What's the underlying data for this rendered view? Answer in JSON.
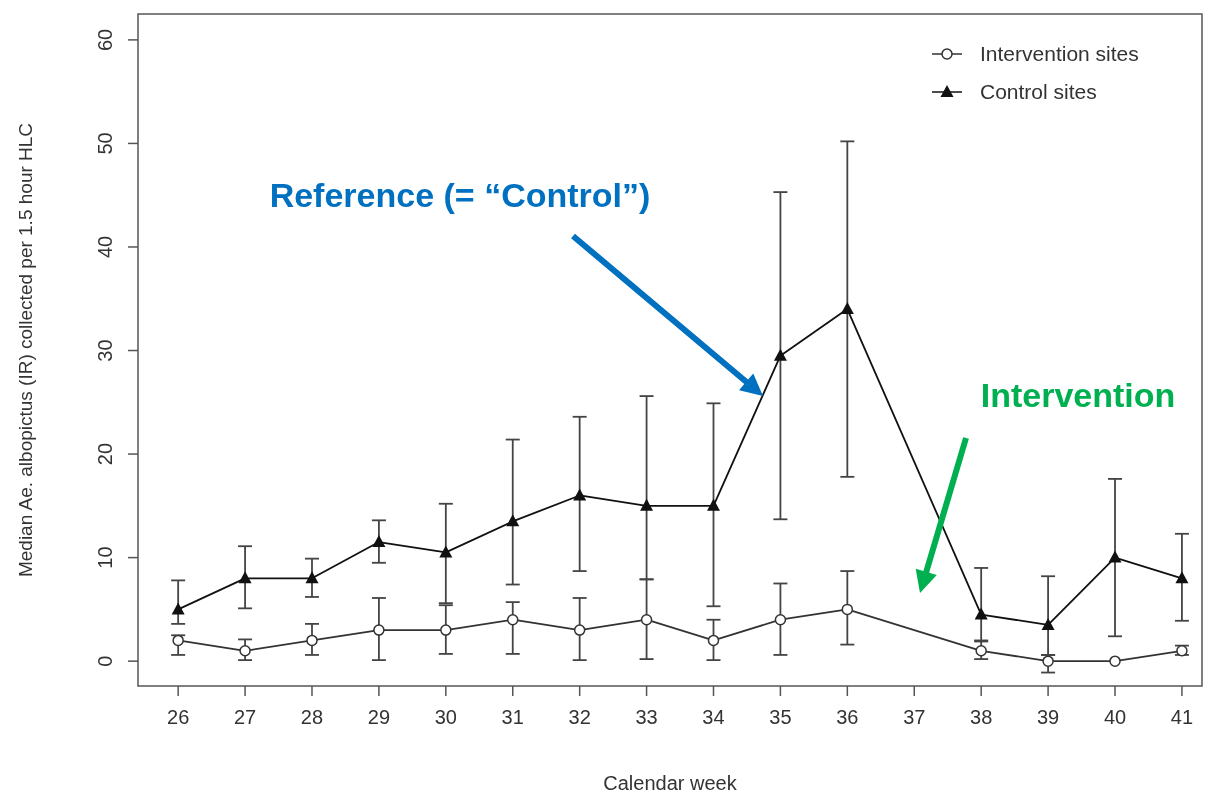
{
  "chart_data": {
    "type": "line",
    "xlabel": "Calendar week",
    "ylabel": "Median Ae. albopictus (IR) collected per 1.5 hour HLC",
    "xlim": [
      25.4,
      41.3
    ],
    "xticks": [
      26,
      27,
      28,
      29,
      30,
      31,
      32,
      33,
      34,
      35,
      36,
      37,
      38,
      39,
      40,
      41
    ],
    "ylim": [
      -2.4,
      62.5
    ],
    "yticks": [
      0,
      10,
      20,
      30,
      40,
      50,
      60
    ],
    "legend": "top right",
    "line_style": "solid",
    "series": [
      {
        "name": "Intervention sites",
        "color": "#333333",
        "marker": "circle",
        "x": [
          26,
          27,
          28,
          29,
          30,
          31,
          32,
          33,
          34,
          35,
          36,
          38,
          39,
          40,
          41
        ],
        "values": [
          2,
          1,
          2,
          3,
          3,
          4,
          3,
          4,
          2,
          4,
          5,
          1,
          0,
          0,
          1
        ],
        "errors": [
          [
            0.6,
            2.5
          ],
          [
            0.1,
            2.1
          ],
          [
            0.6,
            3.6
          ],
          [
            0.1,
            6.1
          ],
          [
            0.7,
            5.4
          ],
          [
            0.7,
            5.7
          ],
          [
            0.1,
            6.1
          ],
          [
            0.2,
            7.9
          ],
          [
            0.1,
            4
          ],
          [
            0.6,
            7.5
          ],
          [
            1.6,
            8.7
          ],
          [
            0.2,
            2
          ],
          [
            -1.1,
            0.6
          ],
          null,
          [
            0.6,
            1.5
          ]
        ]
      },
      {
        "name": "Control sites",
        "color": "#111111",
        "marker": "triangle",
        "x": [
          26,
          27,
          28,
          29,
          30,
          31,
          32,
          33,
          34,
          35,
          36,
          38,
          39,
          40,
          41
        ],
        "values": [
          5,
          8,
          8,
          11.5,
          10.5,
          13.5,
          16,
          15,
          15,
          29.5,
          34,
          4.5,
          3.5,
          10,
          8
        ],
        "errors": [
          [
            3.6,
            7.8
          ],
          [
            5.1,
            11.1
          ],
          [
            6.2,
            9.9
          ],
          [
            9.5,
            13.6
          ],
          [
            5.6,
            15.2
          ],
          [
            7.4,
            21.4
          ],
          [
            8.7,
            23.6
          ],
          [
            7.9,
            25.6
          ],
          [
            5.3,
            24.9
          ],
          [
            13.7,
            45.3
          ],
          [
            17.8,
            50.2
          ],
          [
            1.9,
            9
          ],
          [
            0.6,
            8.2
          ],
          [
            2.4,
            17.6
          ],
          [
            3.9,
            12.3
          ]
        ]
      }
    ],
    "annotations": [
      "Reference (= “Control”)",
      "Intervention"
    ]
  }
}
